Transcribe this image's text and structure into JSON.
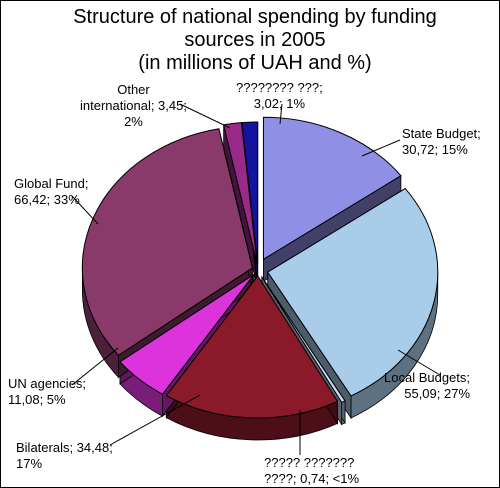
{
  "chart_data": {
    "type": "pie",
    "title_lines": [
      "Structure of national spending by funding",
      "sources in 2005",
      "(in millions of UAH and %)"
    ],
    "slices": [
      {
        "label_lines": [
          "State Budget;",
          "30,72; 15%"
        ],
        "value": 30.72,
        "percent": "15%",
        "color": "#8f8fe6"
      },
      {
        "label_lines": [
          "Local Budgets;",
          "55,09; 27%"
        ],
        "value": 55.09,
        "percent": "27%",
        "color": "#a9cde9"
      },
      {
        "label_lines": [
          "????? ???????",
          "????; 0,74; <1%"
        ],
        "value": 0.74,
        "percent": "<1%",
        "color": "#c9d8f0"
      },
      {
        "label_lines": [
          "Bilaterals; 34,48;",
          "17%"
        ],
        "value": 34.48,
        "percent": "17%",
        "color": "#8a1a2a"
      },
      {
        "label_lines": [
          "UN agencies;",
          "11,08; 5%"
        ],
        "value": 11.08,
        "percent": "5%",
        "color": "#dd33dd"
      },
      {
        "label_lines": [
          "Global Fund;",
          "66,42; 33%"
        ],
        "value": 66.42,
        "percent": "33%",
        "color": "#8a3a6a"
      },
      {
        "label_lines": [
          "Other",
          "international; 3,45;",
          "2%"
        ],
        "value": 3.45,
        "percent": "2%",
        "color": "#9a2a8a"
      },
      {
        "label_lines": [
          "???????? ???;",
          "3,02; 1%"
        ],
        "value": 3.02,
        "percent": "1%",
        "color": "#1414a0"
      }
    ]
  }
}
